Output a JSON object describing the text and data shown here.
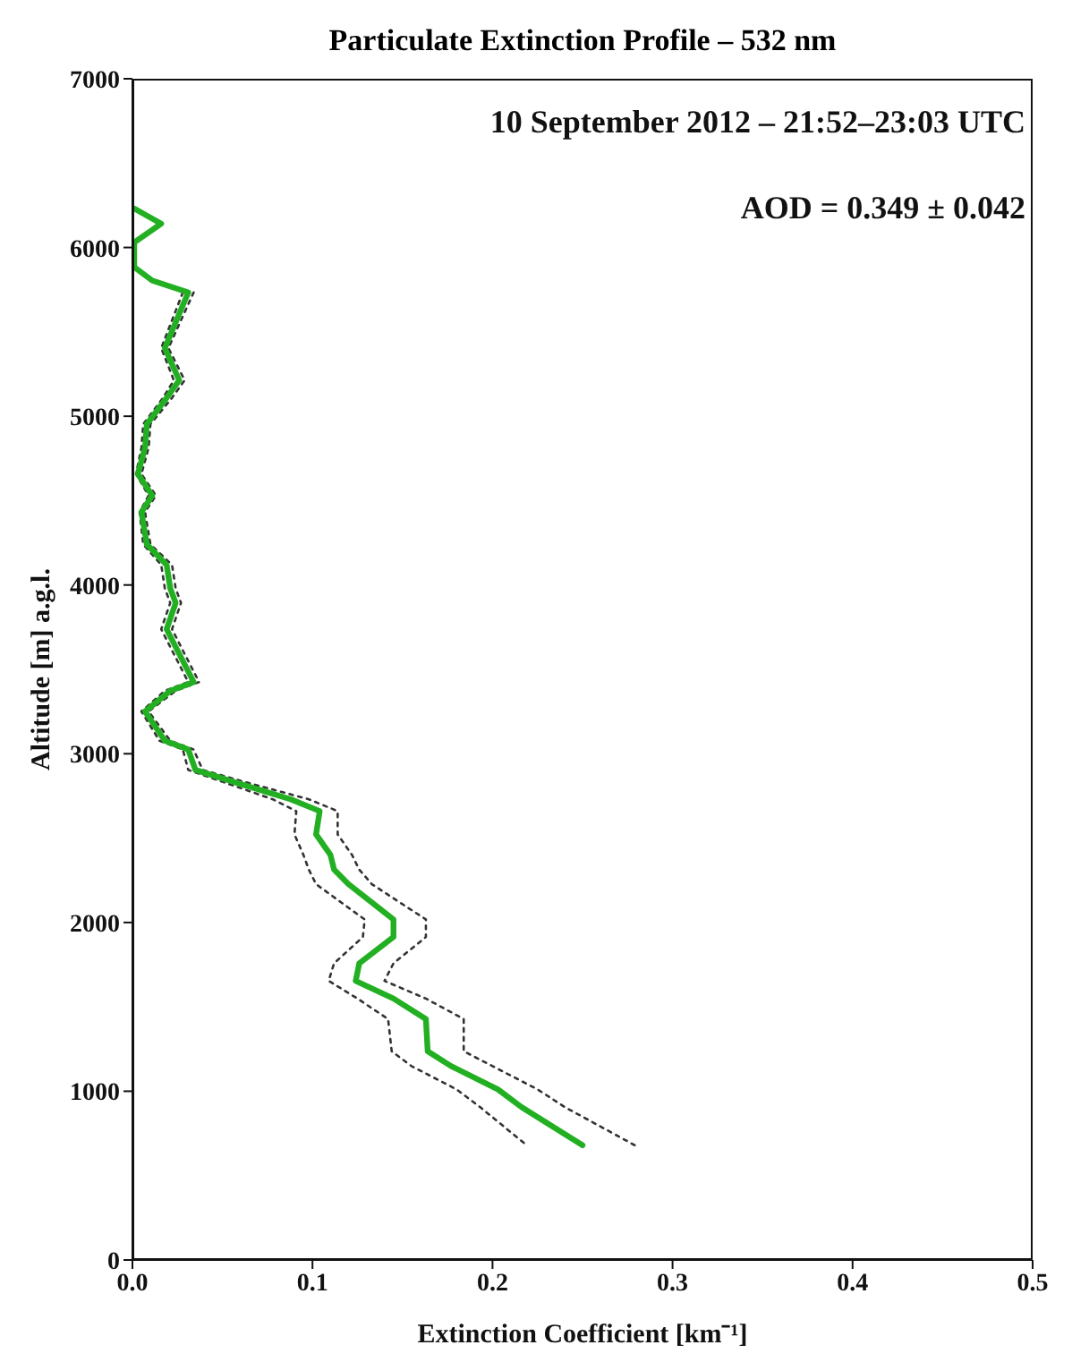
{
  "chart_data": {
    "type": "line",
    "title": "Particulate Extinction Profile – 532 nm",
    "xlabel": "Extinction Coefficient [km⁻¹]",
    "ylabel": "Altitude [m] a.g.l.",
    "annotations": [
      "10 September 2012 – 21:52–23:03 UTC",
      "AOD = 0.349 ± 0.042"
    ],
    "orientation": "horizontal",
    "xlim": [
      0,
      0.5
    ],
    "xticks": [
      {
        "value": 0,
        "label": "0.0"
      },
      0.1,
      0.2,
      0.3,
      0.4,
      0.5
    ],
    "ylim": [
      0,
      7000
    ],
    "yticks": [
      0,
      1000,
      2000,
      3000,
      4000,
      5000,
      6000,
      7000
    ],
    "grid": false,
    "legend": false,
    "marker": "none",
    "series": [
      {
        "color": "#333333",
        "line_style": "dotted",
        "x": [
          5734,
          5404,
          5213,
          5109,
          4953,
          4814,
          4658,
          4530,
          4432,
          4241,
          4119,
          3980,
          3894,
          3738,
          3633,
          3425,
          3373,
          3251,
          3077,
          3025,
          2904,
          2834,
          2730,
          2660,
          2522,
          2400,
          2313,
          2227,
          2018,
          1914,
          1758,
          1654,
          1549,
          1428,
          1237,
          1149,
          1011,
          907,
          680
        ],
        "values": [
          0.028,
          0.016,
          0.023,
          0.017,
          0.006,
          0.005,
          0.002,
          0.009,
          0.004,
          0.006,
          0.016,
          0.018,
          0.021,
          0.016,
          0.021,
          0.031,
          0.018,
          0.005,
          0.015,
          0.028,
          0.031,
          0.05,
          0.078,
          0.091,
          0.09,
          0.095,
          0.098,
          0.102,
          0.129,
          0.128,
          0.112,
          0.109,
          0.125,
          0.142,
          0.144,
          0.155,
          0.18,
          0.193,
          0.219
        ]
      },
      {
        "color": "#333333",
        "line_style": "dotted",
        "x": [
          5734,
          5404,
          5213,
          5109,
          4953,
          4814,
          4658,
          4530,
          4432,
          4241,
          4119,
          3980,
          3894,
          3738,
          3633,
          3425,
          3373,
          3251,
          3077,
          3025,
          2904,
          2834,
          2730,
          2660,
          2522,
          2400,
          2313,
          2227,
          2018,
          1914,
          1758,
          1654,
          1549,
          1428,
          1237,
          1149,
          1011,
          907,
          680
        ],
        "values": [
          0.034,
          0.02,
          0.029,
          0.022,
          0.01,
          0.009,
          0.005,
          0.013,
          0.007,
          0.01,
          0.022,
          0.024,
          0.027,
          0.022,
          0.027,
          0.037,
          0.024,
          0.009,
          0.021,
          0.034,
          0.039,
          0.062,
          0.098,
          0.114,
          0.114,
          0.122,
          0.126,
          0.133,
          0.163,
          0.163,
          0.145,
          0.14,
          0.163,
          0.184,
          0.184,
          0.2,
          0.225,
          0.24,
          0.279
        ]
      },
      {
        "color": "#22b022",
        "line_style": "solid",
        "x": [
          6231,
          6141,
          6030,
          5884,
          5804,
          5734,
          5404,
          5213,
          5109,
          4953,
          4814,
          4658,
          4530,
          4432,
          4241,
          4119,
          3980,
          3894,
          3738,
          3633,
          3425,
          3373,
          3251,
          3077,
          3025,
          2904,
          2834,
          2730,
          2660,
          2522,
          2400,
          2313,
          2227,
          2018,
          1914,
          1758,
          1654,
          1549,
          1428,
          1237,
          1149,
          1011,
          907,
          680
        ],
        "values": [
          0.001,
          0.016,
          0.001,
          0.001,
          0.011,
          0.031,
          0.018,
          0.026,
          0.019,
          0.008,
          0.007,
          0.003,
          0.011,
          0.005,
          0.008,
          0.019,
          0.021,
          0.024,
          0.019,
          0.024,
          0.034,
          0.021,
          0.007,
          0.018,
          0.031,
          0.035,
          0.056,
          0.088,
          0.104,
          0.102,
          0.11,
          0.112,
          0.12,
          0.145,
          0.145,
          0.126,
          0.124,
          0.145,
          0.163,
          0.164,
          0.177,
          0.203,
          0.216,
          0.25
        ]
      }
    ]
  }
}
